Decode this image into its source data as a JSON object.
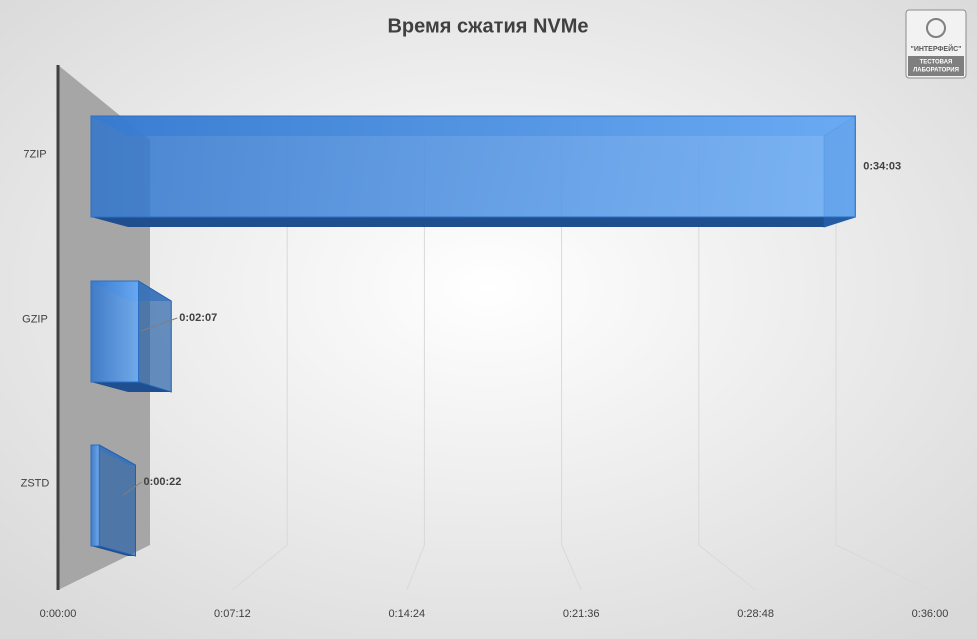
{
  "chart_data": {
    "type": "bar3d",
    "orientation": "horizontal",
    "title": "Время сжатия  NVMe",
    "categories": [
      "7ZIP",
      "GZIP",
      "ZSTD"
    ],
    "values": [
      2043,
      127,
      22
    ],
    "value_labels": [
      "0:34:03",
      "0:02:07",
      "0:00:22"
    ],
    "color": "#3b82d8",
    "xlim": [
      0,
      2160
    ],
    "xticks": [
      {
        "value": 0,
        "label": "0:00:00"
      },
      {
        "value": 432,
        "label": "0:07:12"
      },
      {
        "value": 864,
        "label": "0:14:24"
      },
      {
        "value": 1296,
        "label": "0:21:36"
      },
      {
        "value": 1728,
        "label": "0:28:48"
      },
      {
        "value": 2160,
        "label": "0:36:00"
      }
    ],
    "grid": true
  },
  "logo": {
    "name": "\"ИНТЕРФЕЙС\"",
    "caption": [
      "ТЕСТОВАЯ",
      "ЛАБОРАТОРИЯ"
    ]
  }
}
